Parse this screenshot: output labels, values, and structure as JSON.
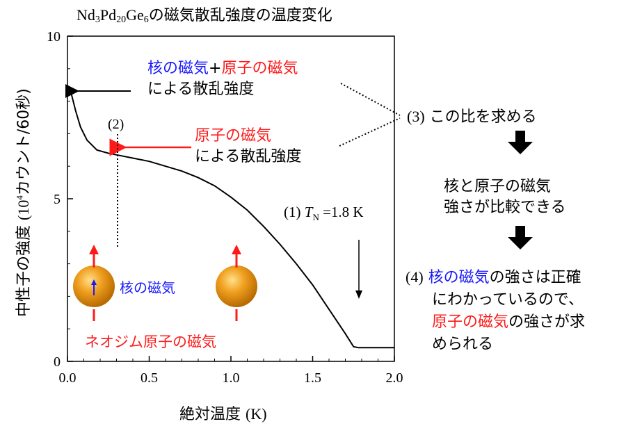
{
  "title": {
    "prefix": "Nd",
    "sub1": "3",
    "mid1": "Pd",
    "sub2": "20",
    "mid2": "Ge",
    "sub3": "6",
    "suffix": "の磁気散乱強度の温度変化"
  },
  "axes": {
    "xlabel_jp": "絶対温度",
    "xlabel_unit": "(K)",
    "ylabel_jp": "中性子の強度",
    "ylabel_unit_pre": "(10",
    "ylabel_unit_sup": "4",
    "ylabel_unit_post": "カウント/60秒)"
  },
  "annotations": {
    "nuclear_magnetic": "核の磁気",
    "plus": "+",
    "atomic_magnetic": "原子の磁気",
    "scattering_intensity": "による散乱強度",
    "label2": "(2)",
    "label1_pre": "(1) ",
    "label1_T": "T",
    "label1_sub": "N",
    "label1_post": " =1.8 K",
    "step3_num": "(3)",
    "step3_text": "この比を求める",
    "step_mid_line1": "核と原子の磁気",
    "step_mid_line2": "強さが比較できる",
    "step4_num": "(4)",
    "step4_line1_blue": "核の磁気",
    "step4_line1_rest": "の強さは正確",
    "step4_line2": "にわかっているので、",
    "step4_line3_red": "原子の磁気",
    "step4_line3_rest": "の強さが求",
    "step4_line4": "められる",
    "sphere_nuc_label": "核の磁気",
    "sphere_atom_label": "ネオジム原子の磁気"
  },
  "colors": {
    "blue": "#1a1aff",
    "red": "#ff1a1a",
    "sphere": "#e8961e"
  },
  "chart_data": {
    "type": "line",
    "xlim": [
      0.0,
      2.0
    ],
    "ylim": [
      0,
      10
    ],
    "x_ticks": [
      "0.0",
      "0.5",
      "1.0",
      "1.5",
      "2.0"
    ],
    "y_ticks": [
      "0",
      "5",
      "10"
    ],
    "series": [
      {
        "x": [
          0.02,
          0.05,
          0.08,
          0.12,
          0.18,
          0.25,
          0.3,
          0.4,
          0.5,
          0.6,
          0.7,
          0.8,
          0.9,
          1.0,
          1.1,
          1.2,
          1.3,
          1.4,
          1.5,
          1.6,
          1.7,
          1.75,
          1.78,
          1.8,
          1.85,
          1.9,
          2.0
        ],
        "y": [
          8.3,
          7.7,
          7.2,
          6.8,
          6.5,
          6.4,
          6.35,
          6.25,
          6.15,
          6.0,
          5.85,
          5.65,
          5.4,
          5.05,
          4.65,
          4.15,
          3.6,
          3.0,
          2.35,
          1.6,
          0.85,
          0.45,
          0.42,
          0.42,
          0.42,
          0.42,
          0.42
        ]
      }
    ]
  }
}
